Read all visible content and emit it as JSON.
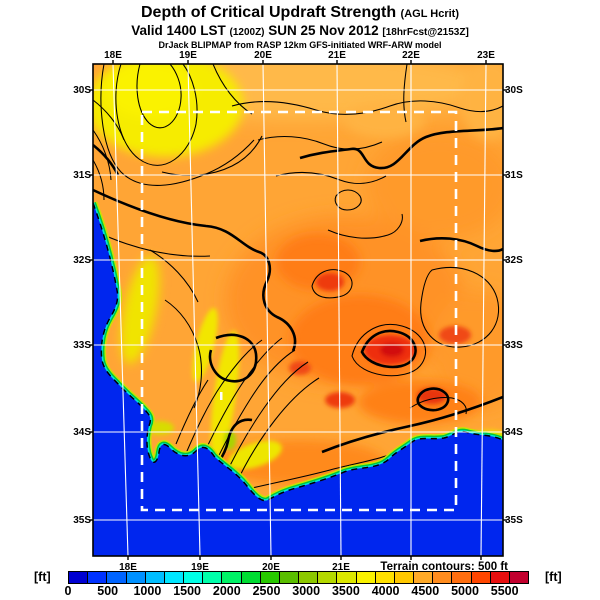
{
  "header": {
    "title": "Depth of Critical Updraft Strength",
    "title_suffix": "(AGL Hcrit)",
    "valid_prefix": "Valid 1400 LST",
    "valid_paren": "(1200Z)",
    "valid_date": "SUN 25 Nov 2012",
    "valid_bracket": "[18hrFcst@2153Z]",
    "model_line": "DrJack BLIPMAP from RASP 12km GFS-initiated WRF-ARW model"
  },
  "map": {
    "axes": {
      "top": [
        "18E",
        "19E",
        "20E",
        "21E",
        "22E",
        "23E"
      ],
      "bottom": [
        "18E",
        "19E",
        "20E",
        "21E"
      ],
      "left": [
        "30S",
        "31S",
        "32S",
        "33S",
        "34S",
        "35S"
      ],
      "right": [
        "30S",
        "31S",
        "32S",
        "33S",
        "34S",
        "35S"
      ]
    },
    "note": "Terrain contours: 500 ft"
  },
  "colorbar": {
    "unit_left": "[ft]",
    "unit_right": "[ft]",
    "ticks": [
      "0",
      "500",
      "1000",
      "1500",
      "2000",
      "2500",
      "3000",
      "3500",
      "4000",
      "4500",
      "5000",
      "5500"
    ],
    "segments": [
      "#0000D2",
      "#0032FF",
      "#0064FF",
      "#0091FF",
      "#00BEFF",
      "#00E6FF",
      "#00FFE6",
      "#00FFAA",
      "#00F266",
      "#00DC32",
      "#28C800",
      "#5ABE00",
      "#8CC800",
      "#B4D800",
      "#DCE800",
      "#FAF200",
      "#FFE100",
      "#FFC800",
      "#FFAA28",
      "#FF8C1E",
      "#FF6E0F",
      "#FF4600",
      "#E81010",
      "#C2002E"
    ]
  },
  "colors": {
    "ocean": "#0026EE",
    "land_base": "#FFA535",
    "grid": "#FFFFFF",
    "contour": "#000000"
  }
}
